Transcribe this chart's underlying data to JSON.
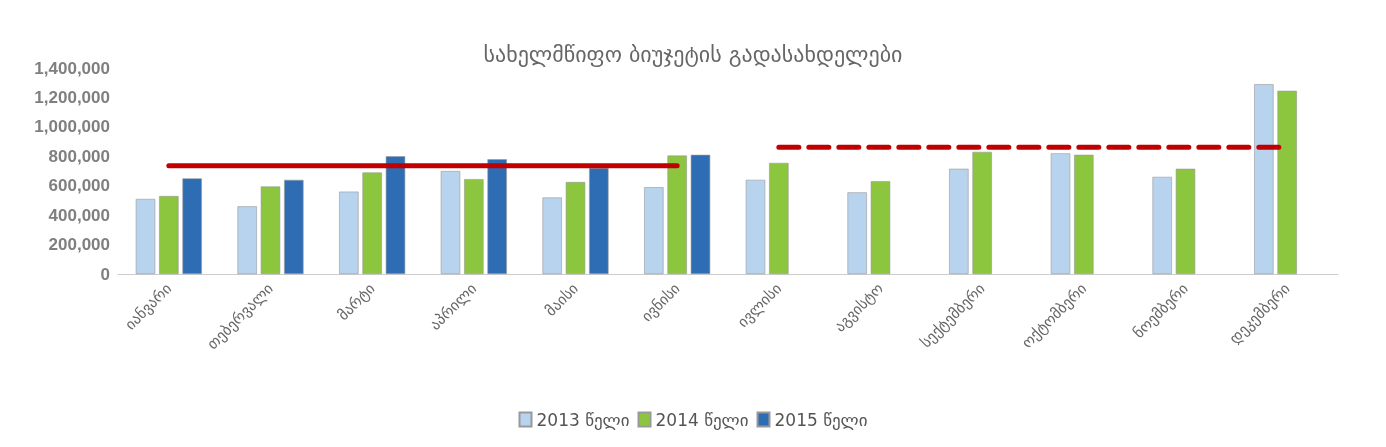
{
  "chart_data": {
    "type": "bar",
    "title": "სახელმწიფო ბიუჯეტის გადასახდელები",
    "categories": [
      "იანვარი",
      "თებერვალი",
      "მარტი",
      "აპრილი",
      "მაისი",
      "ივნისი",
      "ივლისი",
      "აგვისტო",
      "სექტემბერი",
      "ოქტომბერი",
      "ნოემბერი",
      "დეკემბერი"
    ],
    "series": [
      {
        "name": "2013 წელი",
        "color": "#b8d3ee",
        "values": [
          510000,
          460000,
          560000,
          700000,
          520000,
          590000,
          640000,
          555000,
          715000,
          820000,
          660000,
          1290000
        ]
      },
      {
        "name": "2014 წელი",
        "color": "#8cc63f",
        "values": [
          530000,
          595000,
          690000,
          645000,
          625000,
          805000,
          755000,
          630000,
          830000,
          810000,
          715000,
          1245000
        ]
      },
      {
        "name": "2015 წელი",
        "color": "#2e6db4",
        "values": [
          650000,
          640000,
          800000,
          780000,
          720000,
          810000,
          null,
          null,
          null,
          null,
          null,
          null
        ]
      },
      {
        "type": "line",
        "color": "#c00000",
        "line_style": "solid",
        "values": [
          735000,
          735000,
          735000,
          735000,
          735000,
          735000,
          null,
          null,
          null,
          null,
          null,
          null
        ]
      },
      {
        "type": "line",
        "color": "#c00000",
        "line_style": "dashed",
        "values": [
          null,
          null,
          null,
          null,
          null,
          null,
          862000,
          862000,
          862000,
          862000,
          862000,
          862000
        ]
      }
    ],
    "ylim": [
      0,
      1400000
    ],
    "yticks": [
      0,
      {
        "value": 200000,
        "label": "200,000"
      },
      {
        "value": 400000,
        "label": "400,000"
      },
      {
        "value": 600000,
        "label": "600,000"
      },
      {
        "value": 800000,
        "label": "800,000"
      },
      {
        "value": 1000000,
        "label": "1,000,000"
      },
      {
        "value": 1200000,
        "label": "1,200,000"
      },
      {
        "value": 1400000,
        "label": "1,400,000"
      }
    ],
    "legend": "bottom",
    "grid": false,
    "marker": "none"
  }
}
